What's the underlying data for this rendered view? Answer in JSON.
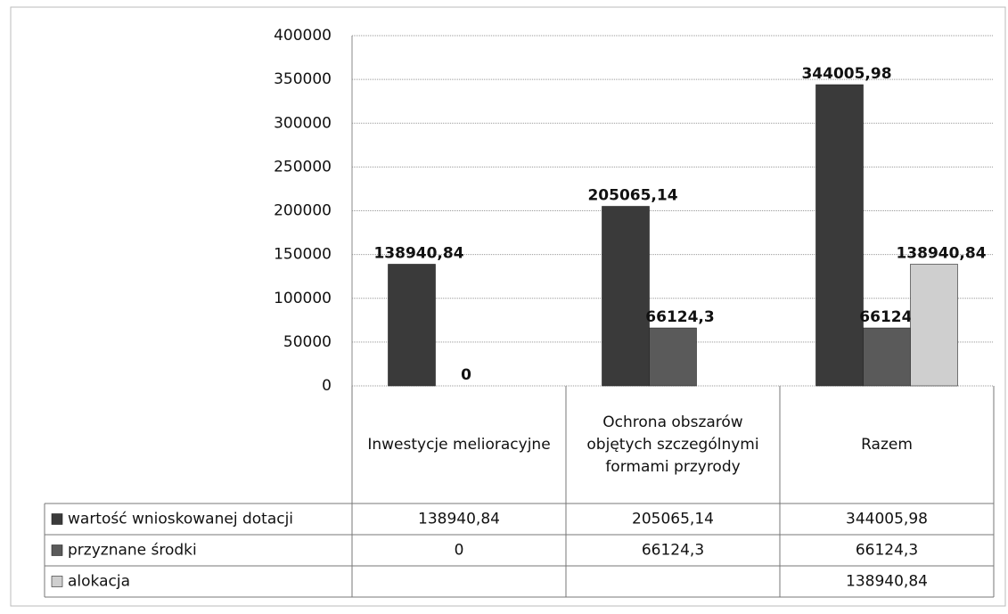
{
  "chart_data": {
    "type": "bar",
    "categories": [
      "Inwestycje melioracyjne",
      "Ochrona obszarów objętych szczególnymi formami przyrody",
      "Razem"
    ],
    "series": [
      {
        "name": "wartość wnioskowanej dotacji",
        "color": "#3a3a3a",
        "values": [
          138940.84,
          205065.14,
          344005.98
        ],
        "value_labels": [
          "138940,84",
          "205065,14",
          "344005,98"
        ]
      },
      {
        "name": "przyznane środki",
        "color": "#5a5a5a",
        "values": [
          0,
          66124.3,
          66124.3
        ],
        "value_labels": [
          "0",
          "66124,3",
          "66124,3"
        ]
      },
      {
        "name": "alokacja",
        "color": "#cfcfcf",
        "values": [
          null,
          null,
          138940.84
        ],
        "value_labels": [
          null,
          null,
          "138940,84"
        ]
      }
    ],
    "ylim": [
      0,
      400000
    ],
    "yticks": [
      0,
      50000,
      100000,
      150000,
      200000,
      250000,
      300000,
      350000,
      400000
    ],
    "grid": true
  }
}
